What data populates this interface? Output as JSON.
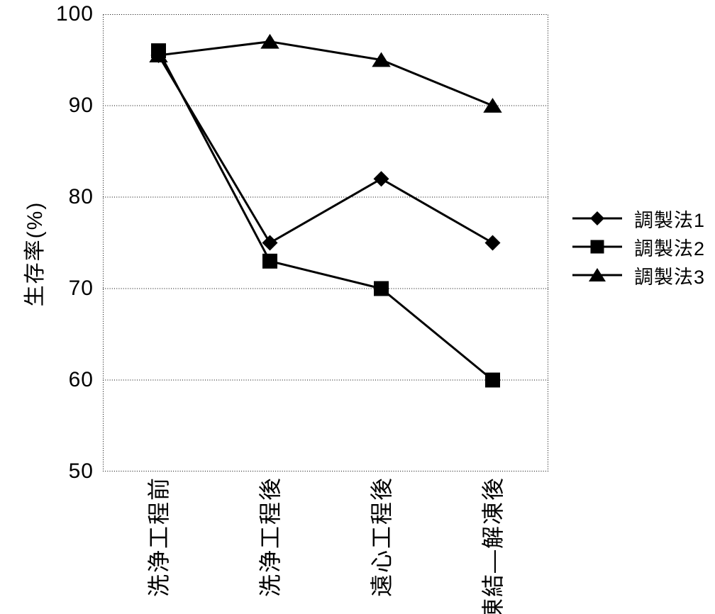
{
  "figure": {
    "background": "#ffffff",
    "ink_color": "#000000"
  },
  "chart_data": {
    "type": "line",
    "title": "",
    "categories": [
      "洗浄工程前",
      "洗浄工程後",
      "遠心工程後",
      "凍結―解凍後"
    ],
    "series": [
      {
        "name": "調製法1",
        "marker": "diamond",
        "values": [
          95.5,
          75,
          82,
          75
        ]
      },
      {
        "name": "調製法2",
        "marker": "square",
        "values": [
          96,
          73,
          70,
          60
        ]
      },
      {
        "name": "調製法3",
        "marker": "triangle",
        "values": [
          95.5,
          97,
          95,
          90
        ]
      }
    ],
    "xlabel": "",
    "ylabel": "生存率(%)",
    "ylim": [
      50,
      100
    ],
    "yticks": [
      100,
      90,
      80,
      70,
      60,
      50
    ],
    "grid": "horizontal dotted gridlines, dotted plot border",
    "legend_position": "right middle, no border",
    "line_color": "#000000",
    "marker_color": "#000000",
    "x_tick_label_rotation_deg": -90
  }
}
